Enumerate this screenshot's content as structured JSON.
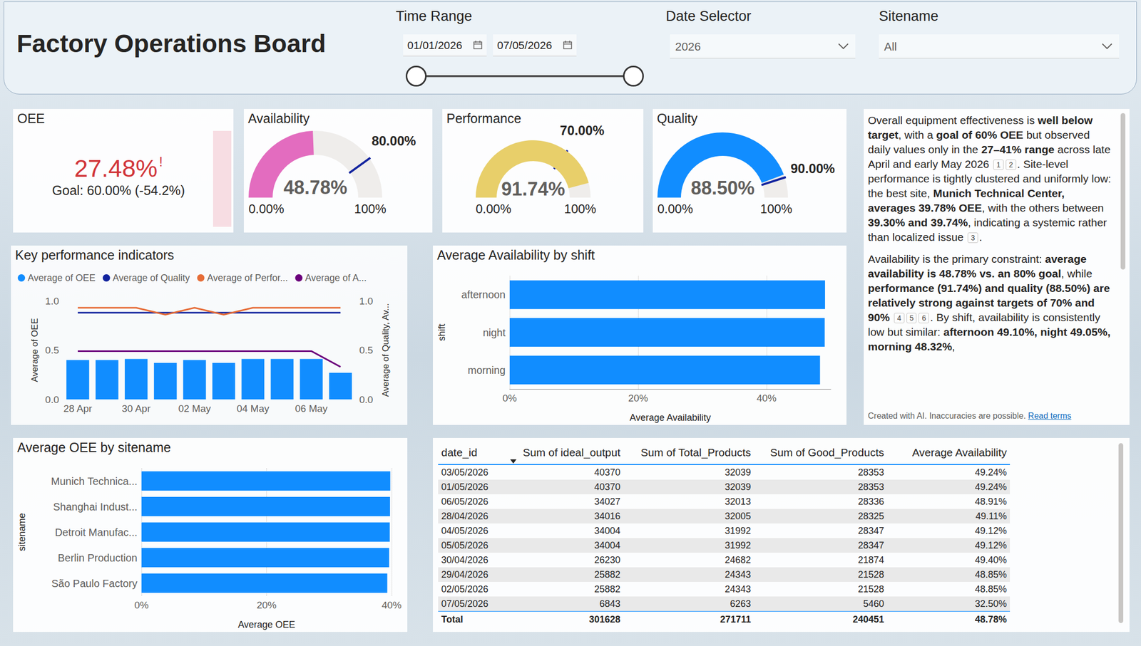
{
  "header": {
    "title": "Factory Operations Board",
    "time_range": {
      "label": "Time Range",
      "start": "01/01/2026",
      "end": "07/05/2026"
    },
    "date_selector": {
      "label": "Date Selector",
      "value": "2026"
    },
    "sitename": {
      "label": "Sitename",
      "value": "All"
    }
  },
  "oee_card": {
    "title": "OEE",
    "value": "27.48%",
    "flag": "!",
    "goal": "Goal: 60.00% (-54.2%)"
  },
  "chart_data": [
    {
      "type": "gauge",
      "title": "Availability",
      "values": [
        48.78
      ],
      "value_labels": [
        "48.78%"
      ],
      "target": 80,
      "target_label": "80.00%",
      "ylim": [
        0,
        100
      ],
      "yticks": [
        {
          "value": 0,
          "label": "0.00%"
        },
        {
          "value": 100,
          "label": "100%"
        }
      ],
      "color": "#e36cbf"
    },
    {
      "type": "gauge",
      "title": "Performance",
      "values": [
        91.74
      ],
      "value_labels": [
        "91.74%"
      ],
      "target": 70,
      "target_label": "70.00%",
      "ylim": [
        0,
        100
      ],
      "yticks": [
        {
          "value": 0,
          "label": "0.00%"
        },
        {
          "value": 100,
          "label": "100%"
        }
      ],
      "color": "#e8cf6a"
    },
    {
      "type": "gauge",
      "title": "Quality",
      "values": [
        88.5
      ],
      "value_labels": [
        "88.50%"
      ],
      "target": 90,
      "target_label": "90.00%",
      "ylim": [
        0,
        100
      ],
      "yticks": [
        {
          "value": 0,
          "label": "0.00%"
        },
        {
          "value": 100,
          "label": "100%"
        }
      ],
      "color": "#118dff"
    },
    {
      "type": "combo",
      "title": "Key performance indicators",
      "categories": [
        "28 Apr",
        null,
        "30 Apr",
        null,
        "02 May",
        null,
        "04 May",
        null,
        "06 May",
        null
      ],
      "series": [
        {
          "name": "Average of OEE",
          "type": "bar",
          "color": "#118dff",
          "values": [
            0.4,
            0.4,
            0.41,
            0.37,
            0.4,
            0.37,
            0.41,
            0.41,
            0.41,
            0.27
          ]
        },
        {
          "name": "Average of Quality",
          "type": "line",
          "axis": "y2",
          "color": "#12239e",
          "values": [
            0.88,
            0.88,
            0.88,
            0.88,
            0.88,
            0.88,
            0.88,
            0.88,
            0.88,
            0.88
          ]
        },
        {
          "name": "Average of Perfor...",
          "type": "line",
          "axis": "y2",
          "color": "#e66c37",
          "values": [
            0.93,
            0.93,
            0.93,
            0.86,
            0.93,
            0.86,
            0.93,
            0.93,
            0.93,
            0.93
          ]
        },
        {
          "name": "Average of A...",
          "type": "line",
          "axis": "y2",
          "color": "#6b007b",
          "values": [
            0.49,
            0.49,
            0.49,
            0.49,
            0.49,
            0.49,
            0.49,
            0.49,
            0.49,
            0.33
          ]
        }
      ],
      "ylabel": "Average of OEE",
      "y2label": "Average of Quality, Av...",
      "ylim": [
        0,
        1
      ],
      "yticks": [
        {
          "value": 0,
          "label": "0.0"
        },
        0.5,
        {
          "value": 1,
          "label": "1.0"
        }
      ],
      "y2lim": [
        0,
        1
      ],
      "y2ticks": [
        {
          "value": 0,
          "label": "0.0"
        },
        0.5,
        {
          "value": 1,
          "label": "1.0"
        }
      ],
      "legend": "top",
      "grid": false
    },
    {
      "type": "bar",
      "orientation": "horizontal",
      "title": "Average Availability by shift",
      "categories": [
        "afternoon",
        "night",
        "morning"
      ],
      "values": [
        49.1,
        49.05,
        48.32
      ],
      "color": "#118dff",
      "xlabel": "Average Availability",
      "ylabel": "shift",
      "xlim": [
        0,
        50
      ],
      "xticks": [
        {
          "value": 0,
          "label": "0%"
        },
        {
          "value": 20,
          "label": "20%"
        },
        {
          "value": 40,
          "label": "40%"
        }
      ],
      "grid": true
    },
    {
      "type": "bar",
      "orientation": "horizontal",
      "title": "Average OEE by sitename",
      "categories": [
        "Munich Technica...",
        "Shanghai Indust...",
        "Detroit Manufac...",
        "Berlin Production",
        "São Paulo Factory"
      ],
      "values": [
        39.78,
        39.74,
        39.7,
        39.6,
        39.3
      ],
      "color": "#118dff",
      "xlabel": "Average OEE",
      "ylabel": "sitename",
      "xlim": [
        0,
        40
      ],
      "xticks": [
        {
          "value": 0,
          "label": "0%"
        },
        {
          "value": 20,
          "label": "20%"
        },
        {
          "value": 40,
          "label": "40%"
        }
      ],
      "grid": true
    }
  ],
  "table": {
    "columns": [
      "date_id",
      "Sum of ideal_output",
      "Sum of Total_Products",
      "Sum of Good_Products",
      "Average Availability"
    ],
    "sorted_by": "Sum of ideal_output",
    "sort": "descending",
    "rows": [
      [
        "03/05/2026",
        "40370",
        "32039",
        "28353",
        "49.24%"
      ],
      [
        "01/05/2026",
        "40370",
        "32039",
        "28353",
        "49.24%"
      ],
      [
        "06/05/2026",
        "34027",
        "32013",
        "28336",
        "48.91%"
      ],
      [
        "28/04/2026",
        "34016",
        "32005",
        "28325",
        "49.11%"
      ],
      [
        "04/05/2026",
        "34004",
        "31992",
        "28347",
        "49.12%"
      ],
      [
        "05/05/2026",
        "34004",
        "31992",
        "28347",
        "49.12%"
      ],
      [
        "30/04/2026",
        "26230",
        "24682",
        "21874",
        "49.40%"
      ],
      [
        "29/04/2026",
        "25882",
        "24343",
        "21528",
        "48.85%"
      ],
      [
        "02/05/2026",
        "25882",
        "24343",
        "21528",
        "48.85%"
      ],
      [
        "07/05/2026",
        "6843",
        "6263",
        "5460",
        "32.50%"
      ]
    ],
    "total": [
      "Total",
      "301628",
      "271711",
      "240451",
      "48.78%"
    ]
  },
  "narrative": {
    "paragraphs": [
      [
        [
          "n",
          "Overall equipment effectiveness is "
        ],
        [
          "b",
          "well below target"
        ],
        [
          "n",
          ", with a "
        ],
        [
          "b",
          "goal of 60% OEE"
        ],
        [
          "n",
          " but observed daily values only in the "
        ],
        [
          "b",
          "27–41% range"
        ],
        [
          "n",
          " across late April and early May 2026 "
        ],
        [
          "c",
          "1"
        ],
        [
          "c",
          "2"
        ],
        [
          "n",
          ". Site-level performance is tightly clustered and uniformly low: the best site, "
        ],
        [
          "b",
          "Munich Technical Center, averages 39.78% OEE"
        ],
        [
          "n",
          ", with the others between "
        ],
        [
          "b",
          "39.30% and 39.74%"
        ],
        [
          "n",
          ", indicating a systemic rather than localized issue "
        ],
        [
          "c",
          "3"
        ],
        [
          "n",
          "."
        ]
      ],
      [
        [
          "n",
          "Availability is the primary constraint: "
        ],
        [
          "b",
          "average availability is 48.78% vs. an 80% goal"
        ],
        [
          "n",
          ", while "
        ],
        [
          "b",
          "performance (91.74%) and quality (88.50%) are relatively strong against targets of 70% and 90%"
        ],
        [
          "n",
          " "
        ],
        [
          "c",
          "4"
        ],
        [
          "c",
          "5"
        ],
        [
          "c",
          "6"
        ],
        [
          "n",
          ". By shift, availability is consistently low but similar: "
        ],
        [
          "b",
          "afternoon 49.10%, night 49.05%, morning 48.32%"
        ],
        [
          "n",
          ","
        ]
      ]
    ],
    "footer": "Created with AI. Inaccuracies are possible.",
    "link": "Read terms"
  }
}
